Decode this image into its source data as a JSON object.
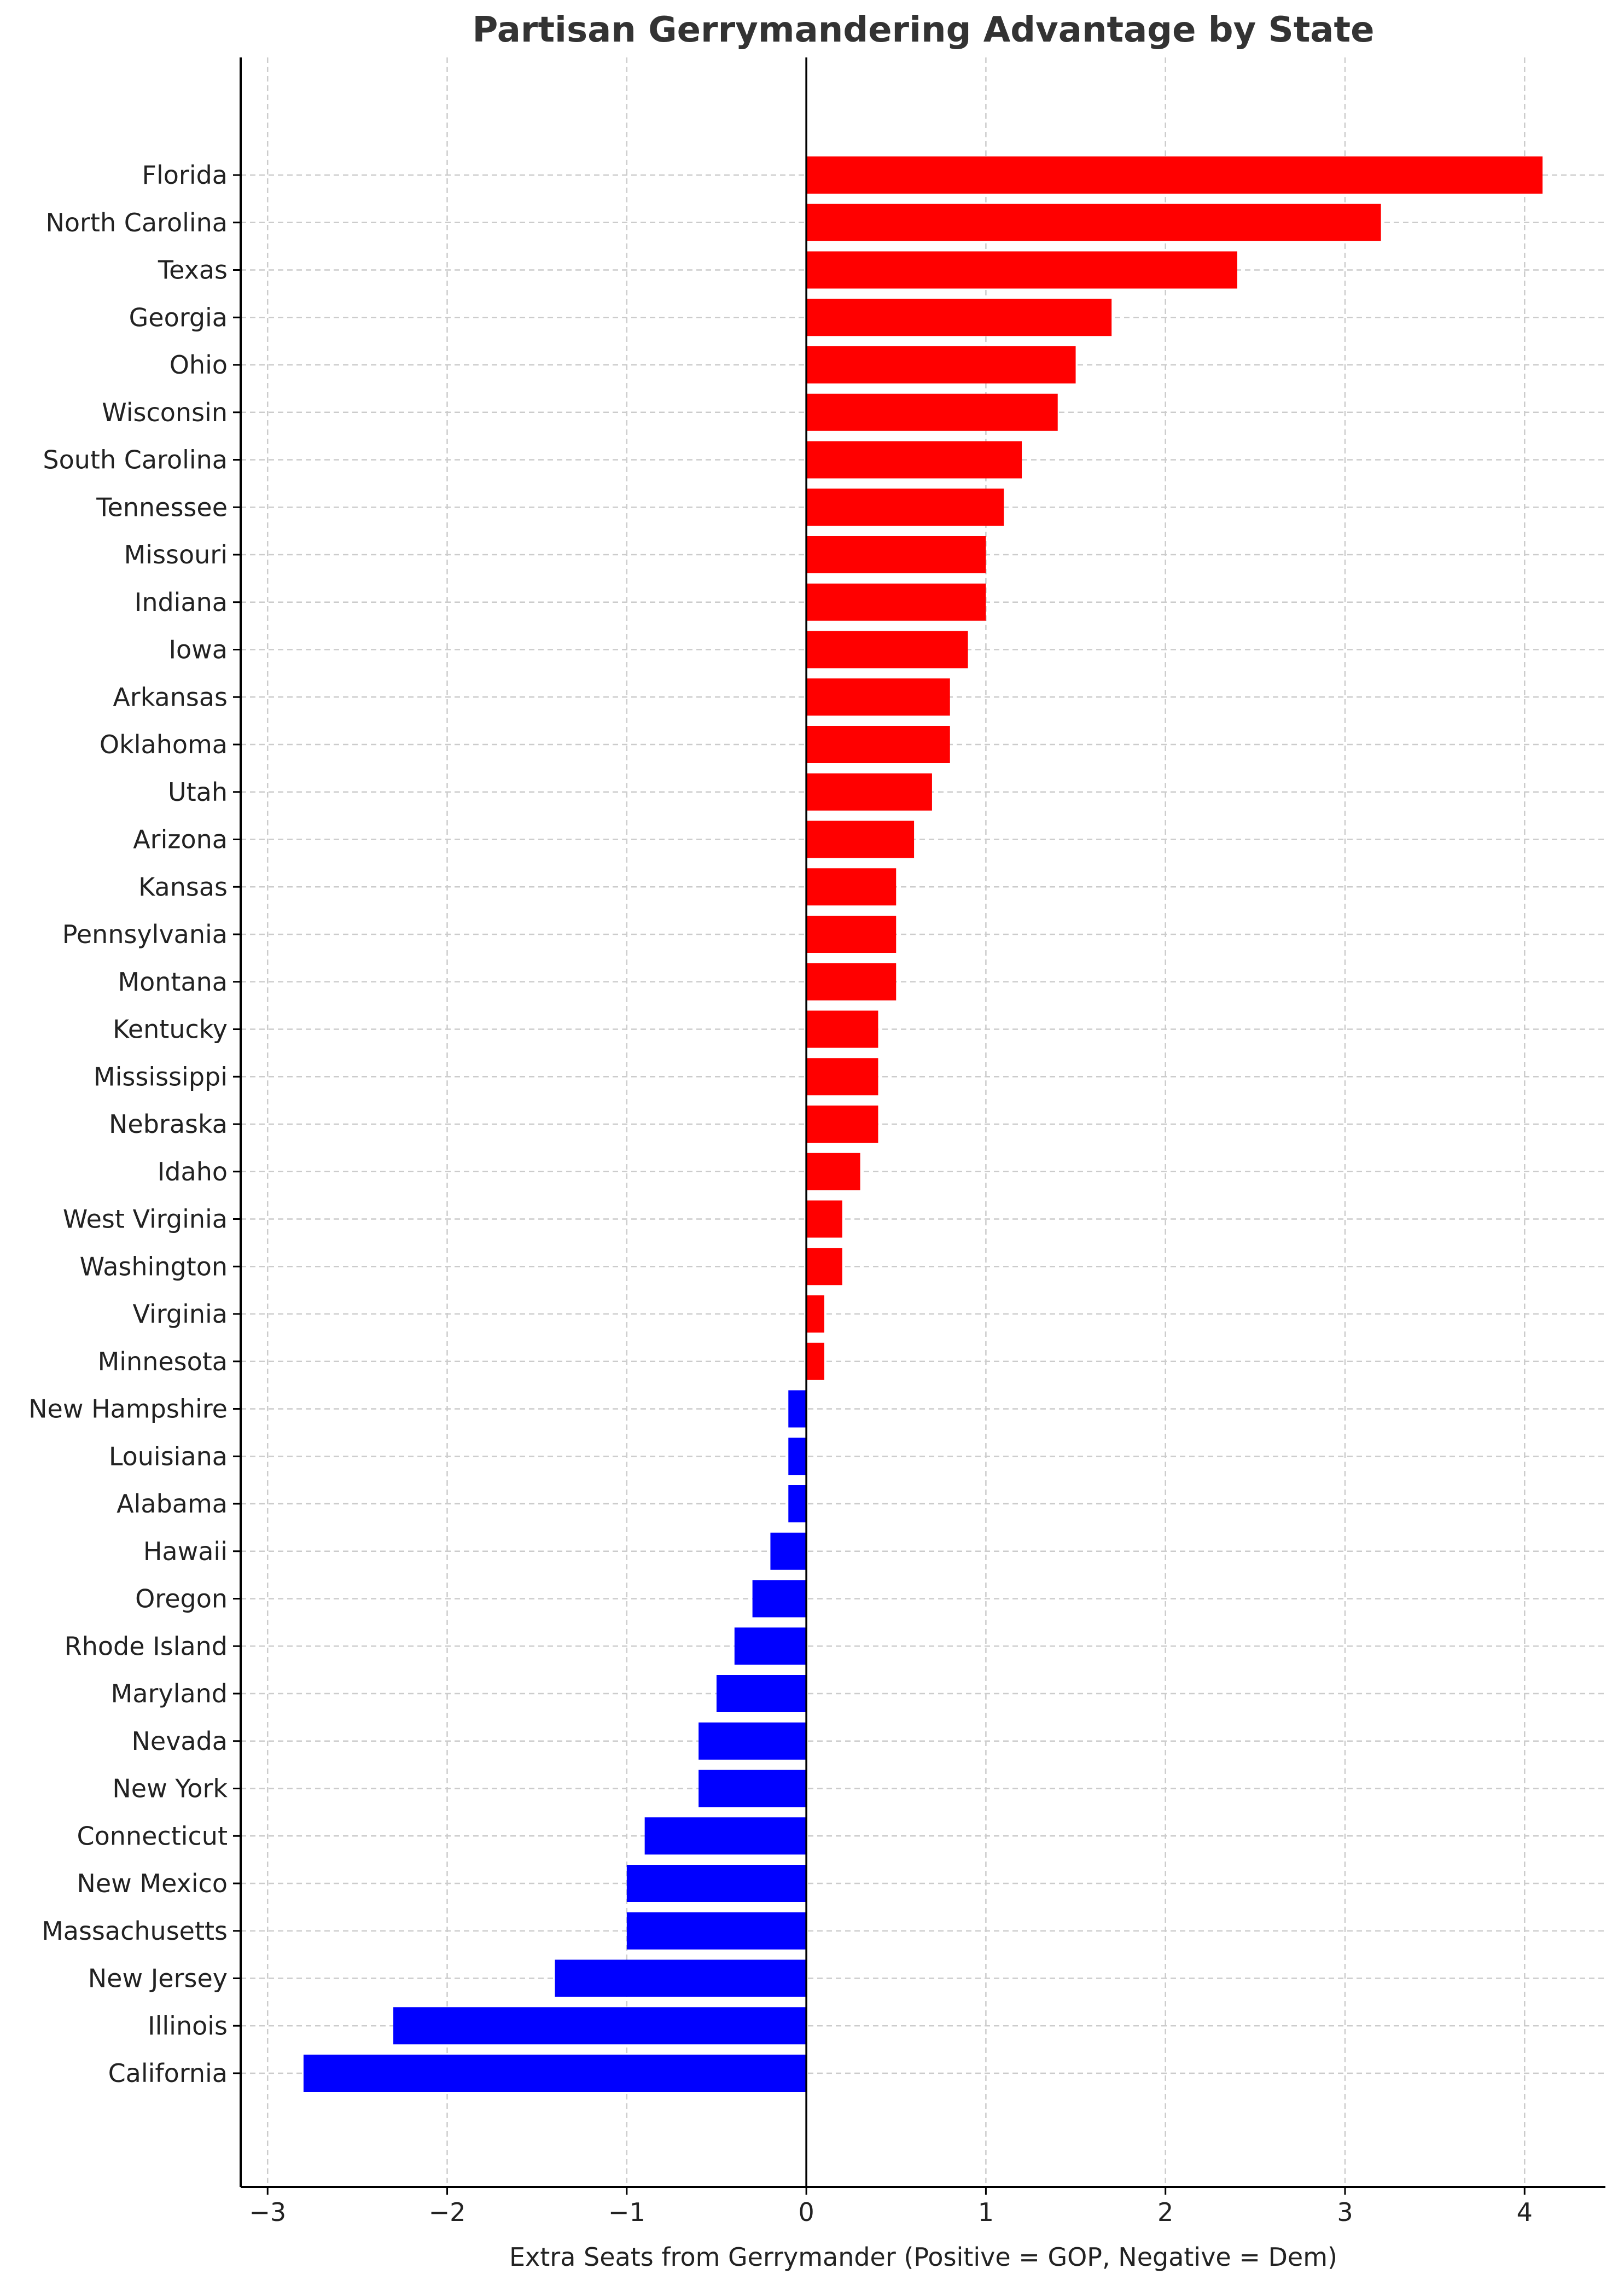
{
  "chart_data": {
    "type": "bar",
    "orientation": "horizontal",
    "title": "Partisan Gerrymandering Advantage by State",
    "xlabel": "Extra Seats from Gerrymander (Positive = GOP, Negative = Dem)",
    "ylabel": "",
    "xlim": [
      -3.15,
      4.45
    ],
    "xticks": [
      -3,
      -2,
      -1,
      0,
      1,
      2,
      3,
      4
    ],
    "xtick_labels": [
      "−3",
      "−2",
      "−1",
      "0",
      "1",
      "2",
      "3",
      "4"
    ],
    "grid": true,
    "legend": "none",
    "colors": {
      "positive": "#ff0000",
      "negative": "#0000ff",
      "grid": "#cccccc",
      "axis": "#000000"
    },
    "categories": [
      "Florida",
      "North Carolina",
      "Texas",
      "Georgia",
      "Ohio",
      "Wisconsin",
      "South Carolina",
      "Tennessee",
      "Missouri",
      "Indiana",
      "Iowa",
      "Arkansas",
      "Oklahoma",
      "Utah",
      "Arizona",
      "Kansas",
      "Pennsylvania",
      "Montana",
      "Kentucky",
      "Mississippi",
      "Nebraska",
      "Idaho",
      "West Virginia",
      "Washington",
      "Virginia",
      "Minnesota",
      "New Hampshire",
      "Louisiana",
      "Alabama",
      "Hawaii",
      "Oregon",
      "Rhode Island",
      "Maryland",
      "Nevada",
      "New York",
      "Connecticut",
      "New Mexico",
      "Massachusetts",
      "New Jersey",
      "Illinois",
      "California"
    ],
    "values": [
      4.1,
      3.2,
      2.4,
      1.7,
      1.5,
      1.4,
      1.2,
      1.1,
      1.0,
      1.0,
      0.9,
      0.8,
      0.8,
      0.7,
      0.6,
      0.5,
      0.5,
      0.5,
      0.4,
      0.4,
      0.4,
      0.3,
      0.2,
      0.2,
      0.1,
      0.1,
      -0.1,
      -0.1,
      -0.1,
      -0.2,
      -0.3,
      -0.4,
      -0.5,
      -0.6,
      -0.6,
      -0.9,
      -1.0,
      -1.0,
      -1.4,
      -2.3,
      -2.8
    ]
  }
}
